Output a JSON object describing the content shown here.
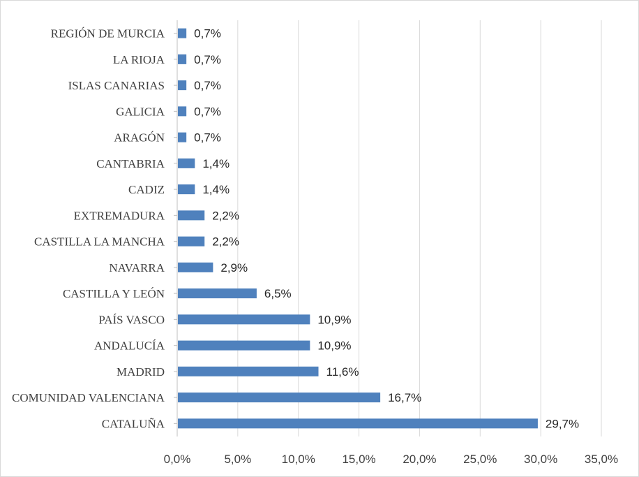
{
  "chart_data": {
    "type": "bar",
    "orientation": "horizontal",
    "categories": [
      "REGIÓN DE MURCIA",
      "LA RIOJA",
      "ISLAS CANARIAS",
      "GALICIA",
      "ARAGÓN",
      "CANTABRIA",
      "CADIZ",
      "EXTREMADURA",
      "CASTILLA LA MANCHA",
      "NAVARRA",
      "CASTILLA Y LEÓN",
      "PAÍS VASCO",
      "ANDALUCÍA",
      "MADRID",
      "COMUNIDAD VALENCIANA",
      "CATALUÑA"
    ],
    "values": [
      0.7,
      0.7,
      0.7,
      0.7,
      0.7,
      1.4,
      1.4,
      2.2,
      2.2,
      2.9,
      6.5,
      10.9,
      10.9,
      11.6,
      16.7,
      29.7
    ],
    "value_labels": [
      "0,7%",
      "0,7%",
      "0,7%",
      "0,7%",
      "0,7%",
      "1,4%",
      "1,4%",
      "2,2%",
      "2,2%",
      "2,9%",
      "6,5%",
      "10,9%",
      "10,9%",
      "11,6%",
      "16,7%",
      "29,7%"
    ],
    "xlim": [
      0,
      35
    ],
    "xticks": [
      0,
      5,
      10,
      15,
      20,
      25,
      30,
      35
    ],
    "xtick_labels": [
      "0,0%",
      "5,0%",
      "10,0%",
      "15,0%",
      "20,0%",
      "25,0%",
      "30,0%",
      "35,0%"
    ],
    "grid": "vertical",
    "legend": "none",
    "title": "",
    "xlabel": "",
    "ylabel": "",
    "colors": {
      "bar": "#4f81bd",
      "grid": "#d9d9d9",
      "axis": "#bfbfbf"
    }
  }
}
